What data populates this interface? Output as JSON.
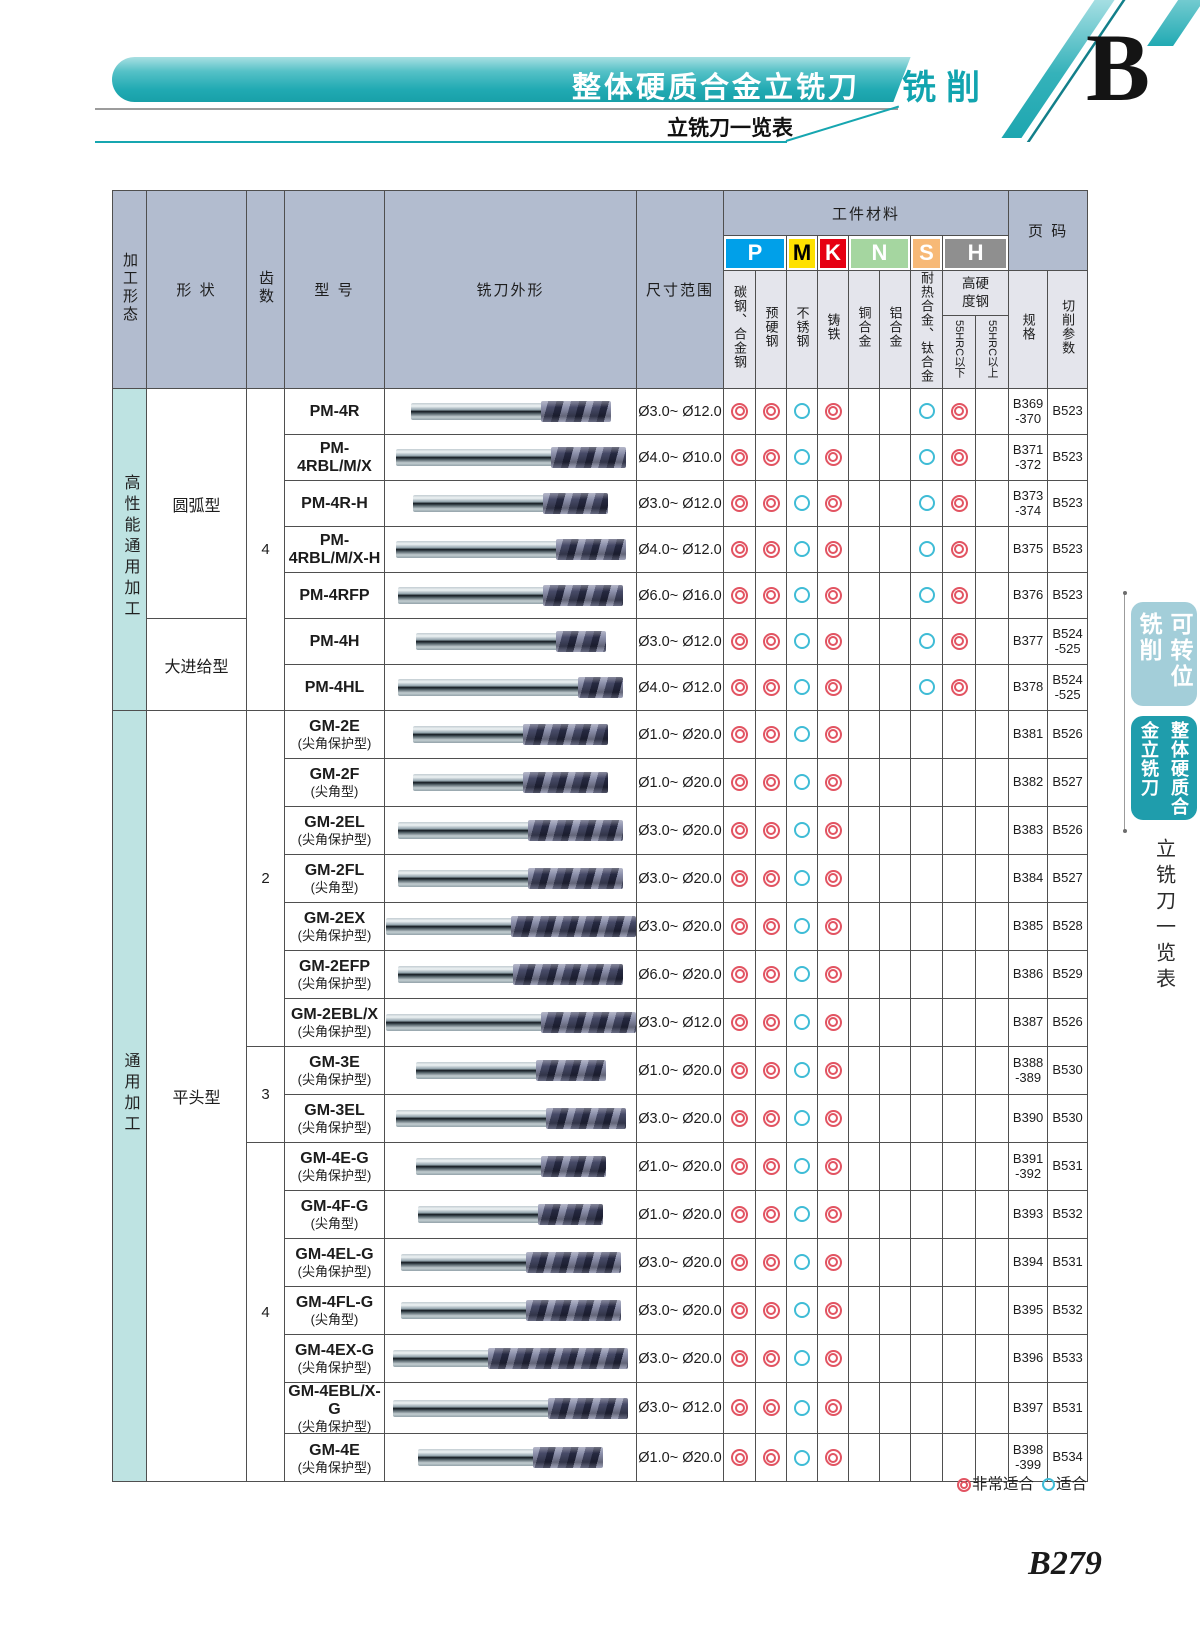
{
  "page": {
    "letter": "B",
    "page_number": "B279"
  },
  "header": {
    "title": "整体硬质合金立铣刀",
    "corner_tab": "铣削",
    "subtitle": "立铣刀一览表"
  },
  "sidebar": {
    "tab_indexable": "可转位铣削",
    "tab_solid": "整体硬质合金立铣刀",
    "label": "立铣刀一览表"
  },
  "legend": {
    "very_label": "非常适合",
    "fit_label": "适合"
  },
  "table": {
    "columns": {
      "process": "加工形态",
      "shape": "形 状",
      "teeth": "齿数",
      "model": "型 号",
      "profile": "铣刀外形",
      "size": "尺寸范围",
      "material": "工件材料",
      "page": "页 码",
      "spec": "规格",
      "cut": "切削参数"
    },
    "materials": [
      {
        "letter": "P",
        "color": "#00a0e9",
        "text_color": "#ffffff",
        "span": 2
      },
      {
        "letter": "M",
        "color": "#ffe100",
        "text_color": "#000000",
        "span": 1
      },
      {
        "letter": "K",
        "color": "#e60012",
        "text_color": "#ffffff",
        "span": 1
      },
      {
        "letter": "N",
        "color": "#a5d6a0",
        "text_color": "#ffffff",
        "span": 2
      },
      {
        "letter": "S",
        "color": "#f7b977",
        "text_color": "#ffffff",
        "span": 1
      },
      {
        "letter": "H",
        "color": "#8f8f8f",
        "text_color": "#ffffff",
        "span": 2
      }
    ],
    "material_labels": [
      "碳钢、合金钢",
      "预硬钢",
      "不锈钢",
      "铸铁",
      "铜合金",
      "铝合金",
      "耐热合金、钛合金"
    ],
    "hard_group": {
      "label": "高硬度钢",
      "subs": [
        "55HRC以下",
        "55HRC以上"
      ]
    },
    "row_groups": {
      "category": [
        {
          "label": "高性能通用加工",
          "span": 7
        },
        {
          "label": "通用加工",
          "span": 16
        }
      ],
      "shape": [
        {
          "label": "圆弧型",
          "span": 5
        },
        {
          "label": "大进给型",
          "span": 2
        },
        {
          "label": "平头型",
          "span": 16
        }
      ],
      "teeth": [
        {
          "label": "4",
          "span": 7
        },
        {
          "label": "2",
          "span": 7
        },
        {
          "label": "3",
          "span": 2
        },
        {
          "label": "4",
          "span": 7
        }
      ]
    },
    "rows": [
      {
        "model": "PM-4R",
        "sub": "",
        "size": "Ø3.0~ Ø12.0",
        "marks": [
          2,
          2,
          1,
          2,
          0,
          0,
          1,
          2,
          0
        ],
        "spec": "B369\n-370",
        "cut": "B523"
      },
      {
        "model": "PM-4RBL/M/X",
        "sub": "",
        "size": "Ø4.0~ Ø10.0",
        "marks": [
          2,
          2,
          1,
          2,
          0,
          0,
          1,
          2,
          0
        ],
        "spec": "B371\n-372",
        "cut": "B523"
      },
      {
        "model": "PM-4R-H",
        "sub": "",
        "size": "Ø3.0~ Ø12.0",
        "marks": [
          2,
          2,
          1,
          2,
          0,
          0,
          1,
          2,
          0
        ],
        "spec": "B373\n-374",
        "cut": "B523"
      },
      {
        "model": "PM-4RBL/M/X-H",
        "sub": "",
        "size": "Ø4.0~ Ø12.0",
        "marks": [
          2,
          2,
          1,
          2,
          0,
          0,
          1,
          2,
          0
        ],
        "spec": "B375",
        "cut": "B523"
      },
      {
        "model": "PM-4RFP",
        "sub": "",
        "size": "Ø6.0~ Ø16.0",
        "marks": [
          2,
          2,
          1,
          2,
          0,
          0,
          1,
          2,
          0
        ],
        "spec": "B376",
        "cut": "B523"
      },
      {
        "model": "PM-4H",
        "sub": "",
        "size": "Ø3.0~ Ø12.0",
        "marks": [
          2,
          2,
          1,
          2,
          0,
          0,
          1,
          2,
          0
        ],
        "spec": "B377",
        "cut": "B524\n-525"
      },
      {
        "model": "PM-4HL",
        "sub": "",
        "size": "Ø4.0~ Ø12.0",
        "marks": [
          2,
          2,
          1,
          2,
          0,
          0,
          1,
          2,
          0
        ],
        "spec": "B378",
        "cut": "B524\n-525"
      },
      {
        "model": "GM-2E",
        "sub": "(尖角保护型)",
        "size": "Ø1.0~ Ø20.0",
        "marks": [
          2,
          2,
          1,
          2,
          0,
          0,
          0,
          0,
          0
        ],
        "spec": "B381",
        "cut": "B526"
      },
      {
        "model": "GM-2F",
        "sub": "(尖角型)",
        "size": "Ø1.0~ Ø20.0",
        "marks": [
          2,
          2,
          1,
          2,
          0,
          0,
          0,
          0,
          0
        ],
        "spec": "B382",
        "cut": "B527"
      },
      {
        "model": "GM-2EL",
        "sub": "(尖角保护型)",
        "size": "Ø3.0~ Ø20.0",
        "marks": [
          2,
          2,
          1,
          2,
          0,
          0,
          0,
          0,
          0
        ],
        "spec": "B383",
        "cut": "B526"
      },
      {
        "model": "GM-2FL",
        "sub": "(尖角型)",
        "size": "Ø3.0~ Ø20.0",
        "marks": [
          2,
          2,
          1,
          2,
          0,
          0,
          0,
          0,
          0
        ],
        "spec": "B384",
        "cut": "B527"
      },
      {
        "model": "GM-2EX",
        "sub": "(尖角保护型)",
        "size": "Ø3.0~ Ø20.0",
        "marks": [
          2,
          2,
          1,
          2,
          0,
          0,
          0,
          0,
          0
        ],
        "spec": "B385",
        "cut": "B528"
      },
      {
        "model": "GM-2EFP",
        "sub": "(尖角保护型)",
        "size": "Ø6.0~ Ø20.0",
        "marks": [
          2,
          2,
          1,
          2,
          0,
          0,
          0,
          0,
          0
        ],
        "spec": "B386",
        "cut": "B529"
      },
      {
        "model": "GM-2EBL/X",
        "sub": "(尖角保护型)",
        "size": "Ø3.0~ Ø12.0",
        "marks": [
          2,
          2,
          1,
          2,
          0,
          0,
          0,
          0,
          0
        ],
        "spec": "B387",
        "cut": "B526"
      },
      {
        "model": "GM-3E",
        "sub": "(尖角保护型)",
        "size": "Ø1.0~ Ø20.0",
        "marks": [
          2,
          2,
          1,
          2,
          0,
          0,
          0,
          0,
          0
        ],
        "spec": "B388\n-389",
        "cut": "B530"
      },
      {
        "model": "GM-3EL",
        "sub": "(尖角保护型)",
        "size": "Ø3.0~ Ø20.0",
        "marks": [
          2,
          2,
          1,
          2,
          0,
          0,
          0,
          0,
          0
        ],
        "spec": "B390",
        "cut": "B530"
      },
      {
        "model": "GM-4E-G",
        "sub": "(尖角保护型)",
        "size": "Ø1.0~ Ø20.0",
        "marks": [
          2,
          2,
          1,
          2,
          0,
          0,
          0,
          0,
          0
        ],
        "spec": "B391\n-392",
        "cut": "B531"
      },
      {
        "model": "GM-4F-G",
        "sub": "(尖角型)",
        "size": "Ø1.0~ Ø20.0",
        "marks": [
          2,
          2,
          1,
          2,
          0,
          0,
          0,
          0,
          0
        ],
        "spec": "B393",
        "cut": "B532"
      },
      {
        "model": "GM-4EL-G",
        "sub": "(尖角保护型)",
        "size": "Ø3.0~ Ø20.0",
        "marks": [
          2,
          2,
          1,
          2,
          0,
          0,
          0,
          0,
          0
        ],
        "spec": "B394",
        "cut": "B531"
      },
      {
        "model": "GM-4FL-G",
        "sub": "(尖角型)",
        "size": "Ø3.0~ Ø20.0",
        "marks": [
          2,
          2,
          1,
          2,
          0,
          0,
          0,
          0,
          0
        ],
        "spec": "B395",
        "cut": "B532"
      },
      {
        "model": "GM-4EX-G",
        "sub": "(尖角保护型)",
        "size": "Ø3.0~ Ø20.0",
        "marks": [
          2,
          2,
          1,
          2,
          0,
          0,
          0,
          0,
          0
        ],
        "spec": "B396",
        "cut": "B533"
      },
      {
        "model": "GM-4EBL/X-G",
        "sub": "(尖角保护型)",
        "size": "Ø3.0~ Ø12.0",
        "marks": [
          2,
          2,
          1,
          2,
          0,
          0,
          0,
          0,
          0
        ],
        "spec": "B397",
        "cut": "B531"
      },
      {
        "model": "GM-4E",
        "sub": "(尖角保护型)",
        "size": "Ø1.0~ Ø20.0",
        "marks": [
          2,
          2,
          1,
          2,
          0,
          0,
          0,
          0,
          0
        ],
        "spec": "B398\n-399",
        "cut": "B534"
      }
    ]
  }
}
